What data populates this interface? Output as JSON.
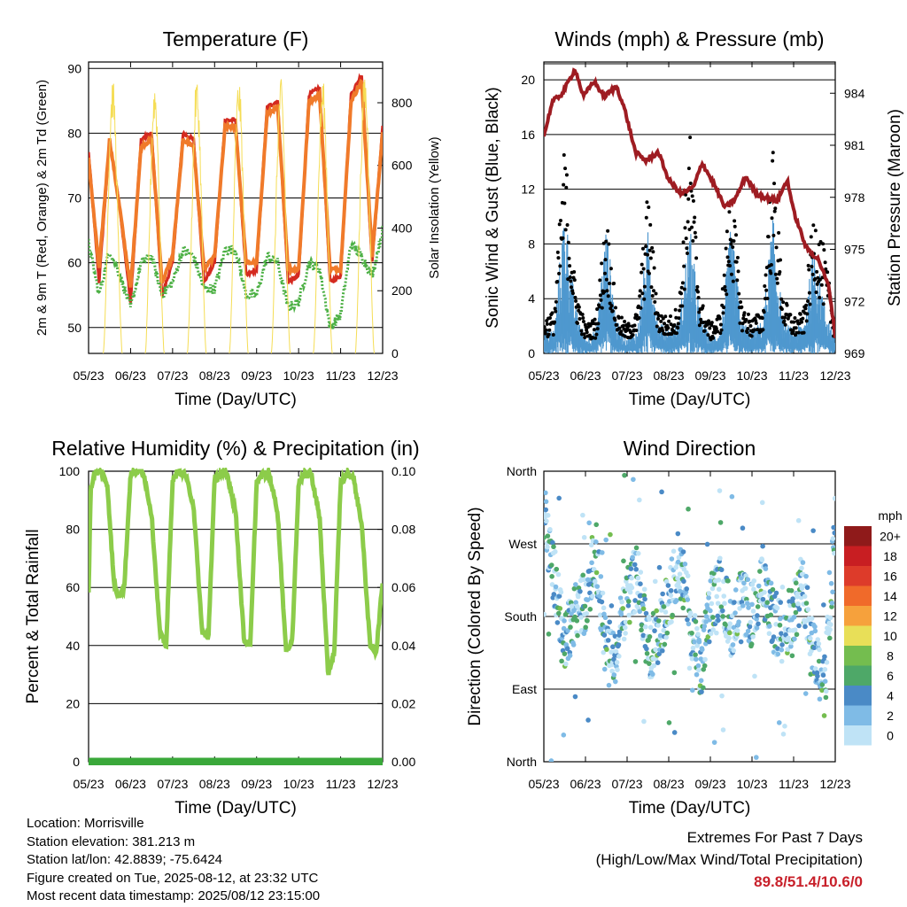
{
  "colors": {
    "temp2m": "#d42a20",
    "temp9m": "#f07a2a",
    "dewpoint": "#4cb044",
    "solar": "#f5dd55",
    "wind": "#4f98cf",
    "gust": "#000000",
    "pressure": "#9e1c22",
    "rh": "#8ccc4a",
    "precip": "#3aa83a",
    "gridline": "#000000"
  },
  "x_ticks": [
    "05/23",
    "06/23",
    "07/23",
    "08/23",
    "09/23",
    "10/23",
    "11/23",
    "12/23"
  ],
  "chart_data": [
    {
      "id": "temperature",
      "type": "line",
      "title": "Temperature (F)",
      "xlabel": "Time (Day/UTC)",
      "ylabel": "2m & 9m T (Red, Orange) & 2m Td (Green)",
      "y2label": "Solar Insolation (Yellow)",
      "ylim": [
        46,
        91
      ],
      "yticks": [
        50,
        60,
        70,
        80,
        90
      ],
      "y2lim": [
        0,
        930
      ],
      "y2ticks": [
        0,
        200,
        400,
        600,
        800
      ],
      "grid": true,
      "series": [
        {
          "name": "2m T",
          "axis": "left",
          "color_key": "temp2m",
          "days": [
            0,
            0.25,
            0.5,
            0.75,
            1,
            1.25,
            1.5,
            1.75,
            2,
            2.25,
            2.5,
            2.75,
            3,
            3.25,
            3.5,
            3.75,
            4,
            4.25,
            4.5,
            4.75,
            5,
            5.25,
            5.5,
            5.75,
            6,
            6.25,
            6.5,
            6.75,
            7
          ],
          "values": [
            77,
            57,
            79,
            68,
            54,
            79,
            80,
            55,
            60,
            80,
            79,
            57,
            60,
            82,
            82,
            58,
            59,
            84,
            85,
            57,
            58,
            86,
            87,
            57,
            58,
            86,
            89,
            60,
            81
          ]
        },
        {
          "name": "9m T",
          "axis": "left",
          "color_key": "temp9m",
          "days": [
            0,
            0.25,
            0.5,
            0.75,
            1,
            1.25,
            1.5,
            1.75,
            2,
            2.25,
            2.5,
            2.75,
            3,
            3.25,
            3.5,
            3.75,
            4,
            4.25,
            4.5,
            4.75,
            5,
            5.25,
            5.5,
            5.75,
            6,
            6.25,
            6.5,
            6.75,
            7
          ],
          "values": [
            76,
            59,
            79,
            68,
            56,
            78,
            79,
            57,
            61,
            79,
            78,
            59,
            61,
            81,
            81,
            60,
            60,
            83,
            84,
            59,
            59,
            85,
            86,
            59,
            59,
            85,
            88,
            61,
            80
          ]
        },
        {
          "name": "2m Td",
          "axis": "left",
          "color_key": "dewpoint",
          "days": [
            0,
            0.25,
            0.5,
            0.75,
            1,
            1.25,
            1.5,
            1.75,
            2,
            2.25,
            2.5,
            2.75,
            3,
            3.25,
            3.5,
            3.75,
            4,
            4.25,
            4.5,
            4.75,
            5,
            5.25,
            5.5,
            5.75,
            6,
            6.25,
            6.5,
            6.75,
            7
          ],
          "values": [
            63,
            55,
            62,
            58,
            53,
            60,
            61,
            55,
            57,
            62,
            61,
            56,
            56,
            62,
            62,
            55,
            55,
            61,
            60,
            53,
            54,
            60,
            59,
            50,
            52,
            63,
            61,
            58,
            65
          ]
        },
        {
          "name": "Solar Insolation",
          "axis": "right",
          "color_key": "solar",
          "days": [
            0.1,
            0.3,
            0.55,
            0.85,
            1.1,
            1.35,
            1.55,
            1.85,
            2.1,
            2.35,
            2.55,
            2.85,
            3.1,
            3.35,
            3.55,
            3.85,
            4.1,
            4.35,
            4.55,
            4.85,
            5.1,
            5.35,
            5.55,
            5.85,
            6.1,
            6.35,
            6.55,
            6.85
          ],
          "values": [
            0,
            0,
            880,
            0,
            0,
            0,
            870,
            0,
            0,
            0,
            880,
            0,
            0,
            0,
            880,
            0,
            0,
            0,
            880,
            0,
            0,
            0,
            880,
            0,
            0,
            0,
            900,
            0
          ]
        }
      ]
    },
    {
      "id": "winds",
      "type": "scatter",
      "title": "Winds (mph) & Pressure (mb)",
      "xlabel": "Time (Day/UTC)",
      "ylabel": "Sonic Wind & Gust (Blue, Black)",
      "y2label": "Station Pressure (Maroon)",
      "ylim": [
        0,
        21.3
      ],
      "yticks": [
        0,
        4,
        8,
        12,
        16,
        20
      ],
      "y2lim": [
        969,
        985.8
      ],
      "y2ticks": [
        969,
        972,
        975,
        978,
        981,
        984
      ],
      "grid": true,
      "series": [
        {
          "name": "Sonic Wind",
          "axis": "left",
          "color_key": "wind",
          "days": [
            0,
            0.25,
            0.5,
            0.75,
            1,
            1.25,
            1.5,
            1.75,
            2,
            2.25,
            2.5,
            2.75,
            3,
            3.25,
            3.5,
            3.75,
            4,
            4.25,
            4.5,
            4.75,
            5,
            5.25,
            5.5,
            5.75,
            6,
            6.25,
            6.5,
            6.75,
            7
          ],
          "values": [
            1.5,
            1.5,
            9.5,
            3,
            1,
            1.5,
            8,
            2,
            1,
            1.5,
            7.5,
            2,
            1.5,
            2,
            8,
            2.5,
            1,
            1.5,
            8,
            2,
            1.5,
            2,
            8.5,
            2,
            1.5,
            2,
            7,
            3,
            1
          ]
        },
        {
          "name": "Gust",
          "axis": "left",
          "color_key": "gust",
          "days": [
            0,
            0.25,
            0.5,
            0.75,
            1,
            1.25,
            1.5,
            1.75,
            2,
            2.25,
            2.5,
            2.75,
            3,
            3.25,
            3.5,
            3.75,
            4,
            4.25,
            4.5,
            4.75,
            5,
            5.25,
            5.5,
            5.75,
            6,
            6.25,
            6.5,
            6.75,
            7
          ],
          "values": [
            2.5,
            3,
            15,
            5,
            2,
            2.5,
            10,
            3,
            2,
            3,
            11.5,
            3,
            2.5,
            3.5,
            16,
            4,
            2,
            3,
            12.5,
            3.5,
            2.5,
            3,
            14.5,
            4,
            2.5,
            3,
            10.5,
            7,
            2
          ]
        },
        {
          "name": "Station Pressure",
          "axis": "right",
          "color_key": "pressure",
          "days": [
            0,
            0.2,
            0.45,
            0.75,
            0.95,
            1.2,
            1.45,
            1.75,
            1.95,
            2.2,
            2.45,
            2.75,
            3.0,
            3.3,
            3.6,
            3.8,
            4.1,
            4.35,
            4.6,
            4.85,
            5.1,
            5.3,
            5.6,
            5.85,
            6.0,
            6.3,
            6.6,
            6.85,
            7
          ],
          "values": [
            981.5,
            983.5,
            984.0,
            985.4,
            983.8,
            984.7,
            983.8,
            984.4,
            983.0,
            980.6,
            980.1,
            980.6,
            979.0,
            978.2,
            978.6,
            980.0,
            978.7,
            977.4,
            977.9,
            979.2,
            978.2,
            978.0,
            977.8,
            979.0,
            977.2,
            975.1,
            974.4,
            972.8,
            970.0
          ]
        }
      ]
    },
    {
      "id": "humidity",
      "type": "line",
      "title": "Relative Humidity (%) & Precipitation (in)",
      "xlabel": "Time (Day/UTC)",
      "ylabel": "Percent & Total Rainfall",
      "ylim": [
        0,
        100
      ],
      "yticks": [
        0,
        20,
        40,
        60,
        80,
        100
      ],
      "y2lim": [
        0,
        0.1
      ],
      "y2ticks": [
        "0.00",
        "0.02",
        "0.04",
        "0.06",
        "0.08",
        "0.10"
      ],
      "grid": true,
      "series": [
        {
          "name": "Relative Humidity",
          "axis": "left",
          "color_key": "rh",
          "days": [
            0,
            0.05,
            0.15,
            0.3,
            0.45,
            0.6,
            0.7,
            0.85,
            1.0,
            1.15,
            1.3,
            1.5,
            1.7,
            1.85,
            2.0,
            2.15,
            2.3,
            2.5,
            2.7,
            2.85,
            3.0,
            3.15,
            3.3,
            3.5,
            3.7,
            3.85,
            4.0,
            4.15,
            4.3,
            4.5,
            4.7,
            4.85,
            5.0,
            5.15,
            5.3,
            5.5,
            5.7,
            5.85,
            6.0,
            6.15,
            6.3,
            6.5,
            6.7,
            6.85,
            7
          ],
          "values": [
            58,
            94,
            99,
            100,
            95,
            62,
            57,
            60,
            99,
            100,
            100,
            85,
            44,
            40,
            97,
            100,
            99,
            88,
            45,
            42,
            97,
            99,
            99,
            86,
            42,
            40,
            96,
            99,
            99,
            86,
            38,
            42,
            96,
            99,
            99,
            84,
            30,
            38,
            96,
            99,
            98,
            82,
            40,
            38,
            62
          ]
        },
        {
          "name": "Total Precipitation",
          "axis": "right",
          "color_key": "precip",
          "days": [
            0,
            7
          ],
          "values": [
            0,
            0
          ]
        }
      ]
    },
    {
      "id": "wind_direction",
      "type": "scatter",
      "title": "Wind Direction",
      "xlabel": "Time (Day/UTC)",
      "ylabel": "Direction (Colored By Speed)",
      "yticks": [
        "North",
        "East",
        "South",
        "West",
        "North"
      ],
      "ylim": [
        0,
        360
      ],
      "grid": true,
      "colorbar": {
        "units": "mph",
        "labels": [
          "20+",
          "18",
          "16",
          "14",
          "12",
          "10",
          "8",
          "6",
          "4",
          "2",
          "0"
        ],
        "colors": [
          "#8f1a1a",
          "#c81e22",
          "#dd3b2a",
          "#f06a2a",
          "#f6a13c",
          "#e8df58",
          "#74bd4f",
          "#4ea868",
          "#4a8ac6",
          "#7fbbe6",
          "#bfe3f6"
        ]
      },
      "series": [
        {
          "name": "Direction",
          "axis": "left",
          "days": [
            0,
            0.25,
            0.5,
            0.75,
            1,
            1.25,
            1.5,
            1.75,
            2,
            2.25,
            2.5,
            2.75,
            3,
            3.25,
            3.5,
            3.75,
            4,
            4.25,
            4.5,
            4.75,
            5,
            5.25,
            5.5,
            5.75,
            6,
            6.25,
            6.5,
            6.75,
            7
          ],
          "values": [
            310,
            230,
            150,
            190,
            200,
            260,
            130,
            140,
            210,
            230,
            140,
            150,
            200,
            250,
            180,
            110,
            190,
            220,
            170,
            200,
            180,
            220,
            175,
            160,
            190,
            210,
            140,
            90,
            300
          ]
        }
      ]
    }
  ],
  "info": {
    "location": "Location: Morrisville",
    "elevation": "Station elevation: 381.213 m",
    "latlon": "Station lat/lon: 42.8839; -75.6424",
    "created": "Figure created on Tue, 2025-08-12, at 23:32 UTC",
    "recent": "Most recent data timestamp: 2025/08/12 23:15:00"
  },
  "extremes": {
    "title": "Extremes For Past 7 Days",
    "subtitle": "(High/Low/Max Wind/Total Precipitation)",
    "values": "89.8/51.4/10.6/0"
  }
}
